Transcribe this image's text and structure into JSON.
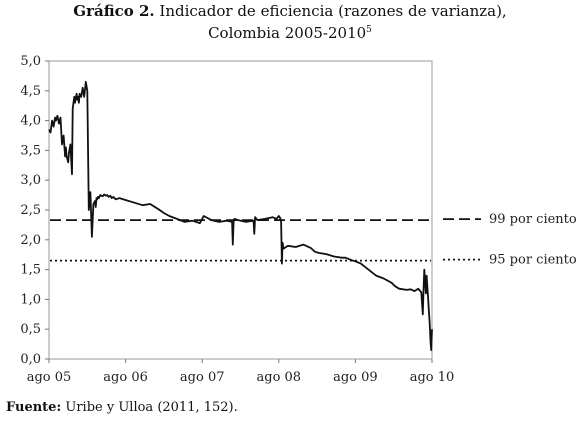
{
  "title": {
    "bold_part": "Gráfico 2.",
    "rest": " Indicador de eficiencia (razones de varianza),",
    "line2": "Colombia 2005-2010",
    "footnote_mark": "5"
  },
  "source": {
    "label": "Fuente:",
    "text": " Uribe y Ulloa (2011, 152)."
  },
  "chart_data": {
    "type": "line",
    "title": "Indicador de eficiencia (razones de varianza), Colombia 2005-2010",
    "xlabel": "",
    "ylabel": "",
    "x_ticks": [
      {
        "label": "ago 05",
        "value": 2005.58
      },
      {
        "label": "ago 06",
        "value": 2006.58
      },
      {
        "label": "ago 07",
        "value": 2007.58
      },
      {
        "label": "ago 08",
        "value": 2008.58
      },
      {
        "label": "ago 09",
        "value": 2009.58
      },
      {
        "label": "ago 10",
        "value": 2010.58
      }
    ],
    "y_ticks": [
      "0,0",
      "0,5",
      "1,0",
      "1,5",
      "2,0",
      "2,5",
      "3,0",
      "3,5",
      "4,0",
      "4,5",
      "5,0"
    ],
    "xlim": [
      2005.58,
      2010.58
    ],
    "ylim": [
      0,
      5
    ],
    "grid": false,
    "legend_position": "right",
    "reference_lines": [
      {
        "name": "99 por ciento",
        "value": 2.33,
        "style": "dashed"
      },
      {
        "name": "95 por ciento",
        "value": 1.65,
        "style": "dotted"
      }
    ],
    "series": [
      {
        "x": [
          2005.58,
          2005.6,
          2005.62,
          2005.64,
          2005.66,
          2005.67,
          2005.69,
          2005.71,
          2005.73,
          2005.75,
          2005.77,
          2005.79,
          2005.8,
          2005.81,
          2005.83,
          2005.84,
          2005.86,
          2005.88,
          2005.89,
          2005.9,
          2005.91,
          2005.92,
          2005.94,
          2005.95,
          2005.96,
          2005.97,
          2005.98,
          2006.0,
          2006.02,
          2006.04,
          2006.06,
          2006.08,
          2006.1,
          2006.12,
          2006.14,
          2006.16,
          2006.18,
          2006.19,
          2006.2,
          2006.21,
          2006.22,
          2006.23,
          2006.25,
          2006.28,
          2006.3,
          2006.32,
          2006.34,
          2006.36,
          2006.38,
          2006.4,
          2006.42,
          2006.45,
          2006.5,
          2006.6,
          2006.7,
          2006.8,
          2006.9,
          2007.0,
          2007.08,
          2007.15,
          2007.25,
          2007.35,
          2007.45,
          2007.55,
          2007.6,
          2007.7,
          2007.8,
          2007.9,
          2007.97,
          2007.98,
          2007.99,
          2008.0,
          2008.05,
          2008.15,
          2008.25,
          2008.26,
          2008.27,
          2008.3,
          2008.4,
          2008.5,
          2008.55,
          2008.58,
          2008.6,
          2008.61,
          2008.62,
          2008.63,
          2008.64,
          2008.7,
          2008.8,
          2008.9,
          2009.0,
          2009.05,
          2009.1,
          2009.2,
          2009.3,
          2009.4,
          2009.45,
          2009.55,
          2009.58,
          2009.65,
          2009.75,
          2009.85,
          2009.95,
          2010.05,
          2010.1,
          2010.15,
          2010.25,
          2010.3,
          2010.35,
          2010.4,
          2010.42,
          2010.44,
          2010.46,
          2010.47,
          2010.48,
          2010.49,
          2010.5,
          2010.51,
          2010.52,
          2010.53,
          2010.54,
          2010.55,
          2010.56,
          2010.57,
          2010.58
        ],
        "y": [
          3.85,
          3.8,
          4.0,
          3.9,
          4.05,
          4.0,
          4.08,
          3.95,
          4.05,
          3.6,
          3.75,
          3.4,
          3.55,
          3.4,
          3.3,
          3.45,
          3.6,
          3.1,
          4.2,
          4.3,
          4.4,
          4.3,
          4.45,
          4.35,
          4.4,
          4.3,
          4.45,
          4.4,
          4.55,
          4.4,
          4.65,
          4.5,
          2.5,
          2.8,
          2.05,
          2.6,
          2.65,
          2.55,
          2.7,
          2.68,
          2.72,
          2.7,
          2.75,
          2.73,
          2.76,
          2.74,
          2.75,
          2.72,
          2.74,
          2.7,
          2.72,
          2.68,
          2.7,
          2.66,
          2.62,
          2.58,
          2.6,
          2.52,
          2.45,
          2.4,
          2.35,
          2.3,
          2.32,
          2.28,
          2.4,
          2.33,
          2.3,
          2.32,
          2.3,
          1.92,
          2.3,
          2.35,
          2.33,
          2.3,
          2.32,
          2.1,
          2.38,
          2.33,
          2.35,
          2.38,
          2.35,
          2.4,
          2.36,
          2.3,
          1.6,
          1.95,
          1.85,
          1.9,
          1.88,
          1.92,
          1.86,
          1.8,
          1.78,
          1.76,
          1.72,
          1.7,
          1.7,
          1.65,
          1.64,
          1.6,
          1.5,
          1.4,
          1.35,
          1.28,
          1.22,
          1.18,
          1.16,
          1.17,
          1.14,
          1.18,
          1.15,
          1.12,
          0.75,
          1.2,
          1.5,
          1.3,
          1.1,
          1.4,
          1.2,
          1.0,
          0.8,
          0.6,
          0.3,
          0.15,
          0.5
        ]
      }
    ]
  },
  "legend": [
    {
      "label": "99 por ciento",
      "style": "dashed"
    },
    {
      "label": "95 por ciento",
      "style": "dotted"
    }
  ]
}
